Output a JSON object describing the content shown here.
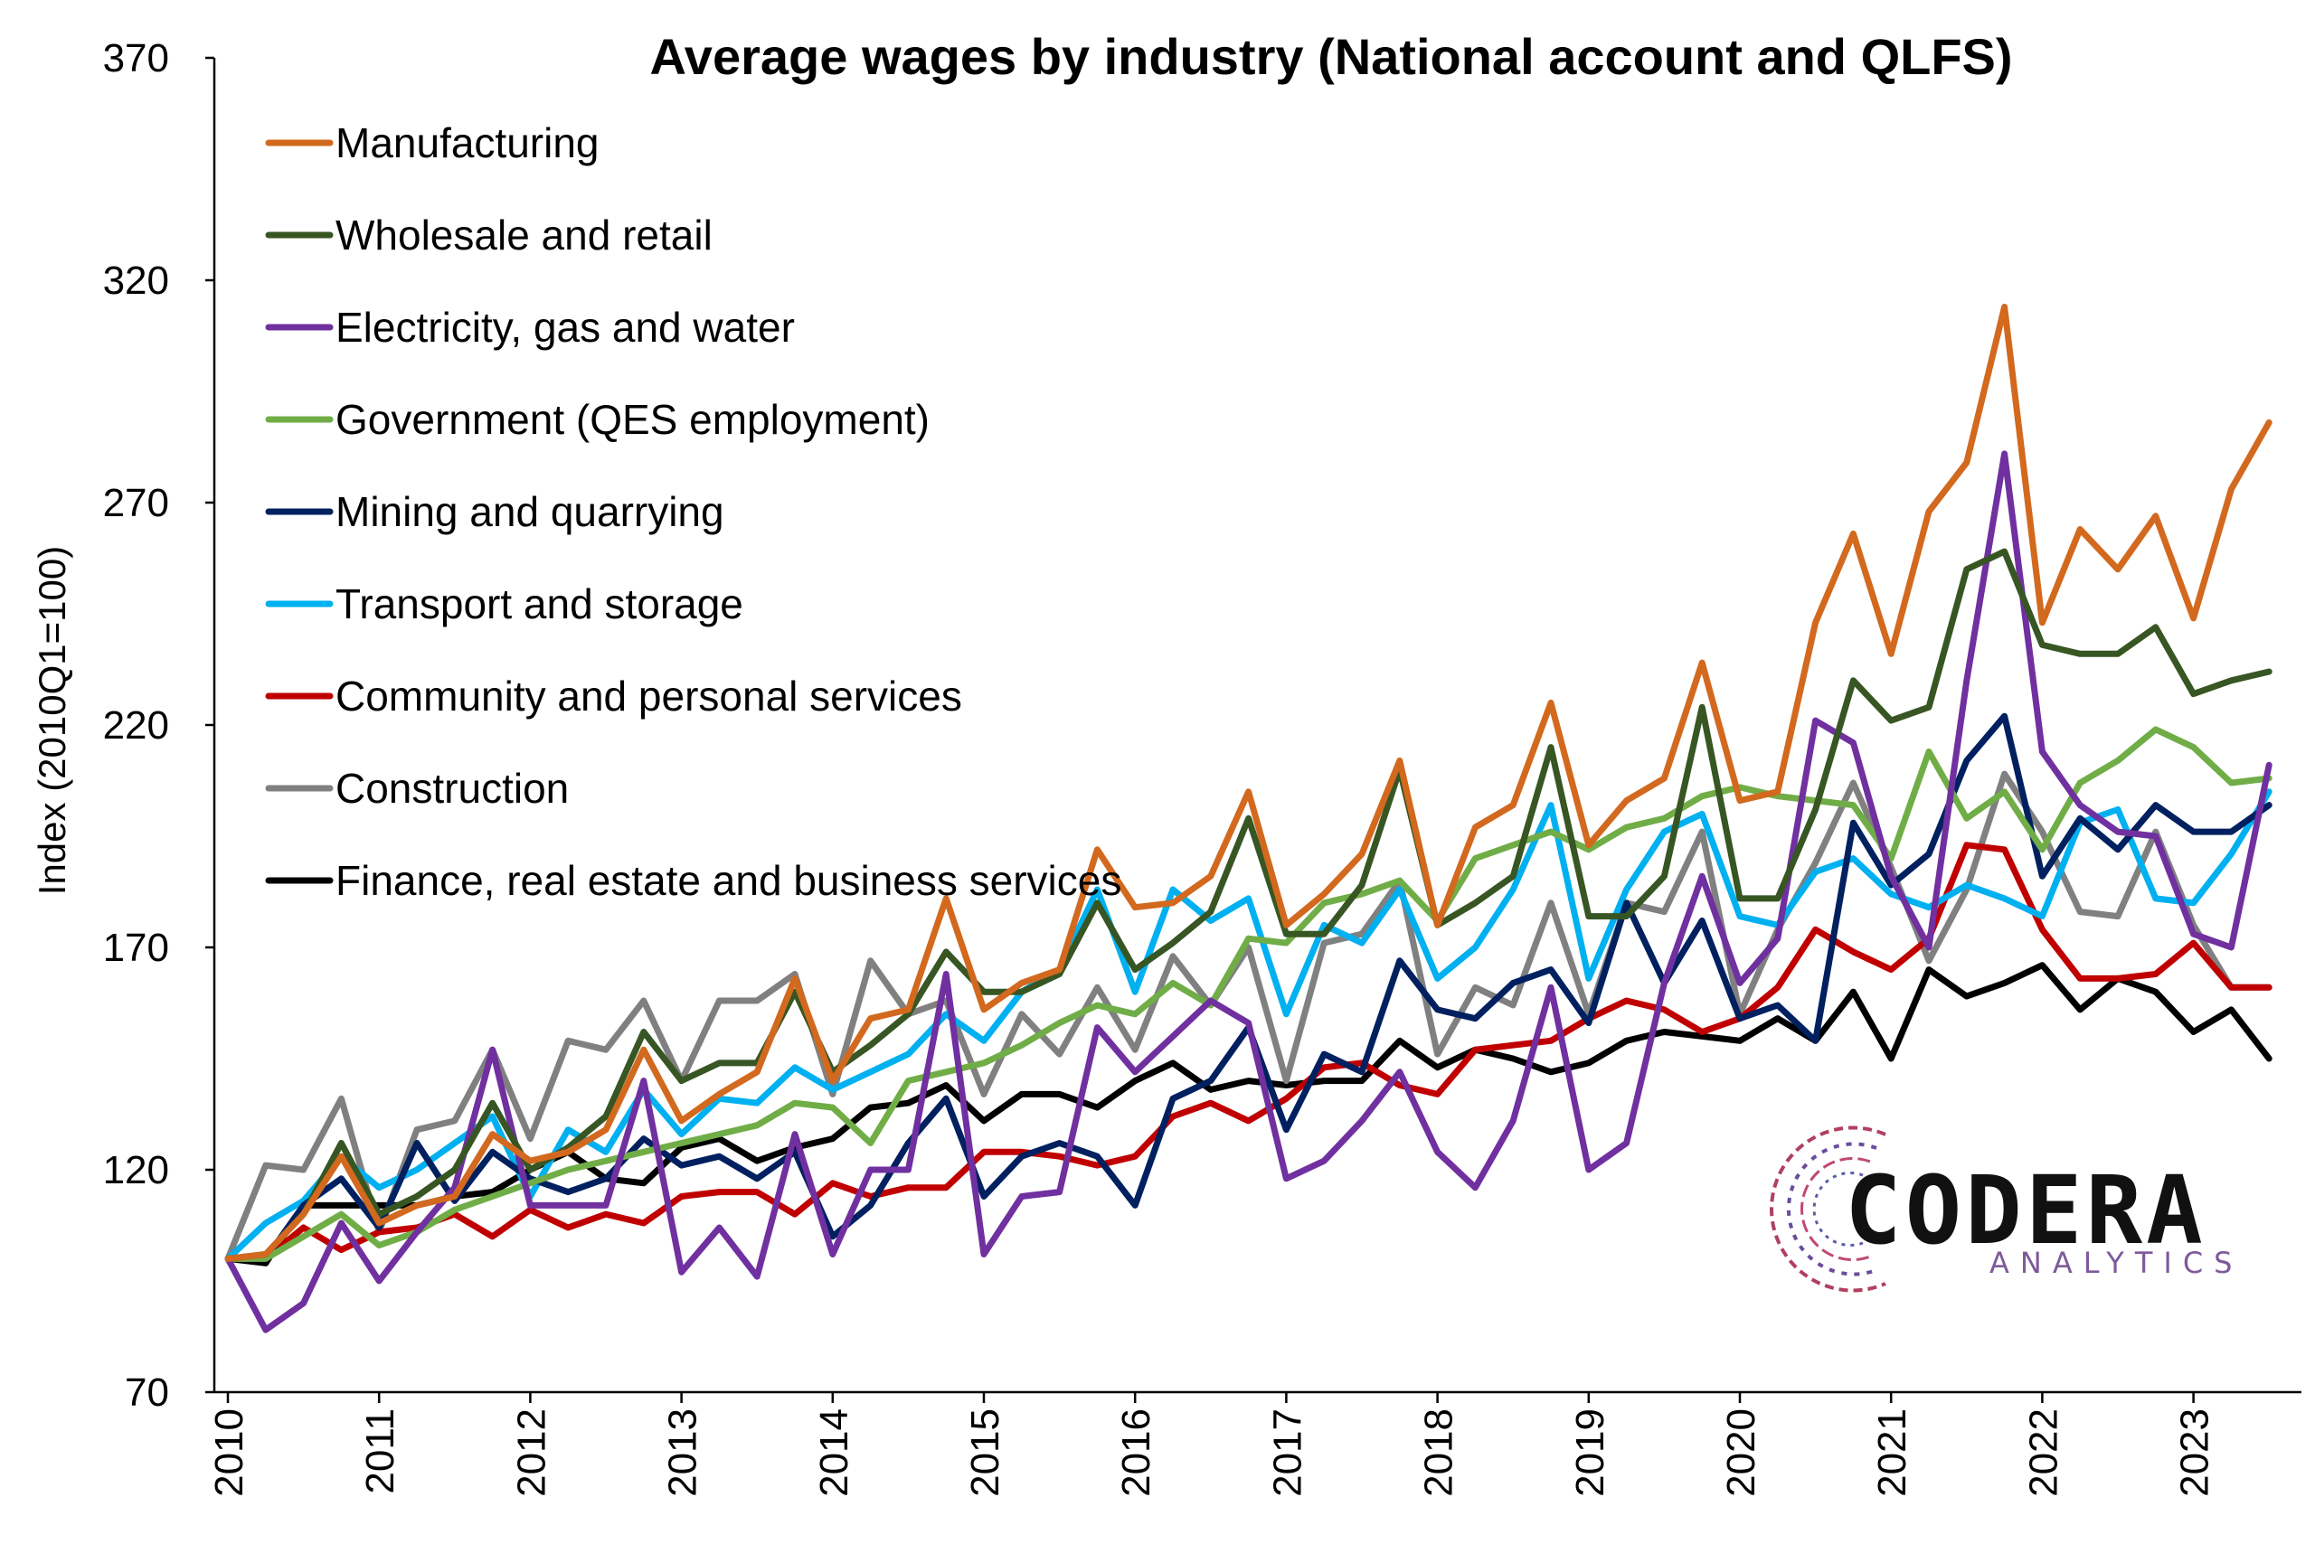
{
  "chart_data": {
    "type": "line",
    "title": "Average wages by industry (National account and QLFS)",
    "ylabel": "Index (2010Q1=100)",
    "xlabel": "",
    "ylim": [
      70,
      370
    ],
    "y_ticks": [
      "70",
      "120",
      "170",
      "220",
      "270",
      "320",
      "370"
    ],
    "x_ticks": [
      "2010",
      "2011",
      "2012",
      "2013",
      "2014",
      "2015",
      "2016",
      "2017",
      "2018",
      "2019",
      "2020",
      "2021",
      "2022",
      "2023"
    ],
    "x": [
      "2010Q1",
      "2010Q2",
      "2010Q3",
      "2010Q4",
      "2011Q1",
      "2011Q2",
      "2011Q3",
      "2011Q4",
      "2012Q1",
      "2012Q2",
      "2012Q3",
      "2012Q4",
      "2013Q1",
      "2013Q2",
      "2013Q3",
      "2013Q4",
      "2014Q1",
      "2014Q2",
      "2014Q3",
      "2014Q4",
      "2015Q1",
      "2015Q2",
      "2015Q3",
      "2015Q4",
      "2016Q1",
      "2016Q2",
      "2016Q3",
      "2016Q4",
      "2017Q1",
      "2017Q2",
      "2017Q3",
      "2017Q4",
      "2018Q1",
      "2018Q2",
      "2018Q3",
      "2018Q4",
      "2019Q1",
      "2019Q2",
      "2019Q3",
      "2019Q4",
      "2020Q1",
      "2020Q2",
      "2020Q3",
      "2020Q4",
      "2021Q1",
      "2021Q2",
      "2021Q3",
      "2021Q4",
      "2022Q1",
      "2022Q2",
      "2022Q3",
      "2022Q4",
      "2023Q1",
      "2023Q2",
      "2023Q3"
    ],
    "legend_position": "top-left",
    "grid": false,
    "series": [
      {
        "name": "Manufacturing",
        "color": "#D2691E",
        "values": [
          100,
          101,
          110,
          123,
          108,
          112,
          114,
          128,
          122,
          124,
          129,
          147,
          131,
          137,
          142,
          163,
          140,
          154,
          156,
          181,
          156,
          162,
          165,
          192,
          179,
          180,
          186,
          205,
          175,
          182,
          191,
          212,
          175,
          197,
          202,
          225,
          193,
          203,
          208,
          234,
          203,
          205,
          243,
          263,
          236,
          268,
          279,
          314,
          243,
          264,
          255,
          267,
          244,
          273,
          288
        ]
      },
      {
        "name": "Wholesale and retail",
        "color": "#375623",
        "values": [
          100,
          101,
          110,
          126,
          110,
          114,
          120,
          135,
          120,
          125,
          132,
          151,
          140,
          144,
          144,
          160,
          142,
          148,
          155,
          169,
          160,
          160,
          164,
          180,
          165,
          171,
          178,
          199,
          173,
          173,
          184,
          210,
          175,
          180,
          186,
          215,
          177,
          177,
          186,
          224,
          181,
          181,
          201,
          230,
          221,
          224,
          255,
          259,
          238,
          236,
          236,
          242,
          227,
          230,
          232
        ]
      },
      {
        "name": "Electricity, gas and water",
        "color": "#7030A0",
        "values": [
          100,
          84,
          90,
          108,
          95,
          106,
          116,
          147,
          112,
          112,
          112,
          140,
          97,
          107,
          96,
          128,
          101,
          120,
          120,
          164,
          101,
          114,
          115,
          152,
          142,
          150,
          158,
          153,
          118,
          122,
          131,
          142,
          124,
          116,
          131,
          161,
          120,
          126,
          162,
          186,
          162,
          172,
          221,
          216,
          186,
          170,
          230,
          281,
          214,
          202,
          196,
          195,
          173,
          170,
          211
        ]
      },
      {
        "name": "Government (QES employment)",
        "color": "#70AD47",
        "values": [
          100,
          100,
          105,
          110,
          103,
          106,
          111,
          114,
          117,
          120,
          122,
          124,
          126,
          128,
          130,
          135,
          134,
          126,
          140,
          142,
          144,
          148,
          153,
          157,
          155,
          162,
          157,
          172,
          171,
          180,
          182,
          185,
          176,
          190,
          193,
          196,
          192,
          197,
          199,
          204,
          206,
          204,
          203,
          202,
          190,
          214,
          199,
          205,
          192,
          207,
          212,
          219,
          215,
          207,
          208
        ]
      },
      {
        "name": "Mining and quarrying",
        "color": "#002060",
        "values": [
          100,
          100,
          112,
          118,
          107,
          126,
          113,
          124,
          118,
          115,
          118,
          127,
          121,
          123,
          118,
          124,
          105,
          112,
          126,
          136,
          114,
          123,
          126,
          123,
          112,
          136,
          140,
          152,
          129,
          146,
          142,
          167,
          156,
          154,
          162,
          165,
          153,
          180,
          162,
          176,
          154,
          157,
          149,
          198,
          184,
          191,
          212,
          222,
          186,
          199,
          192,
          202,
          196,
          196,
          202
        ]
      },
      {
        "name": "Transport and storage",
        "color": "#00B0F0",
        "values": [
          100,
          108,
          113,
          123,
          116,
          120,
          126,
          132,
          114,
          129,
          124,
          138,
          128,
          136,
          135,
          143,
          138,
          142,
          146,
          155,
          149,
          160,
          165,
          183,
          160,
          183,
          176,
          181,
          155,
          175,
          171,
          183,
          163,
          170,
          183,
          202,
          163,
          183,
          196,
          200,
          177,
          175,
          187,
          190,
          182,
          179,
          184,
          181,
          177,
          198,
          201,
          181,
          180,
          191,
          205
        ]
      },
      {
        "name": "Community and personal services",
        "color": "#C00000",
        "values": [
          100,
          100,
          107,
          102,
          106,
          107,
          110,
          105,
          111,
          107,
          110,
          108,
          114,
          115,
          115,
          110,
          117,
          114,
          116,
          116,
          124,
          124,
          123,
          121,
          123,
          132,
          135,
          131,
          136,
          143,
          144,
          139,
          137,
          147,
          148,
          149,
          154,
          158,
          156,
          151,
          154,
          161,
          174,
          169,
          165,
          172,
          193,
          192,
          174,
          163,
          163,
          164,
          171,
          161,
          161
        ]
      },
      {
        "name": "Construction",
        "color": "#808080",
        "values": [
          100,
          121,
          120,
          136,
          106,
          129,
          131,
          147,
          127,
          149,
          147,
          158,
          140,
          158,
          158,
          164,
          137,
          167,
          155,
          158,
          137,
          155,
          146,
          161,
          147,
          168,
          157,
          170,
          140,
          171,
          173,
          185,
          146,
          161,
          157,
          180,
          155,
          180,
          178,
          196,
          155,
          174,
          189,
          207,
          188,
          167,
          183,
          209,
          196,
          178,
          177,
          196,
          175,
          161,
          161
        ]
      },
      {
        "name": "Finance, real estate and business services",
        "color": "#000000",
        "values": [
          100,
          99,
          112,
          112,
          112,
          112,
          114,
          115,
          120,
          124,
          118,
          117,
          125,
          127,
          122,
          125,
          127,
          134,
          135,
          139,
          131,
          137,
          137,
          134,
          140,
          144,
          138,
          140,
          139,
          140,
          140,
          149,
          143,
          147,
          145,
          142,
          144,
          149,
          151,
          150,
          149,
          154,
          149,
          160,
          145,
          165,
          159,
          162,
          166,
          156,
          163,
          160,
          151,
          156,
          145
        ]
      }
    ]
  },
  "logo": {
    "name": "CODERA",
    "sub": "ANALYTICS",
    "sub_color": "#7E5A9B"
  }
}
